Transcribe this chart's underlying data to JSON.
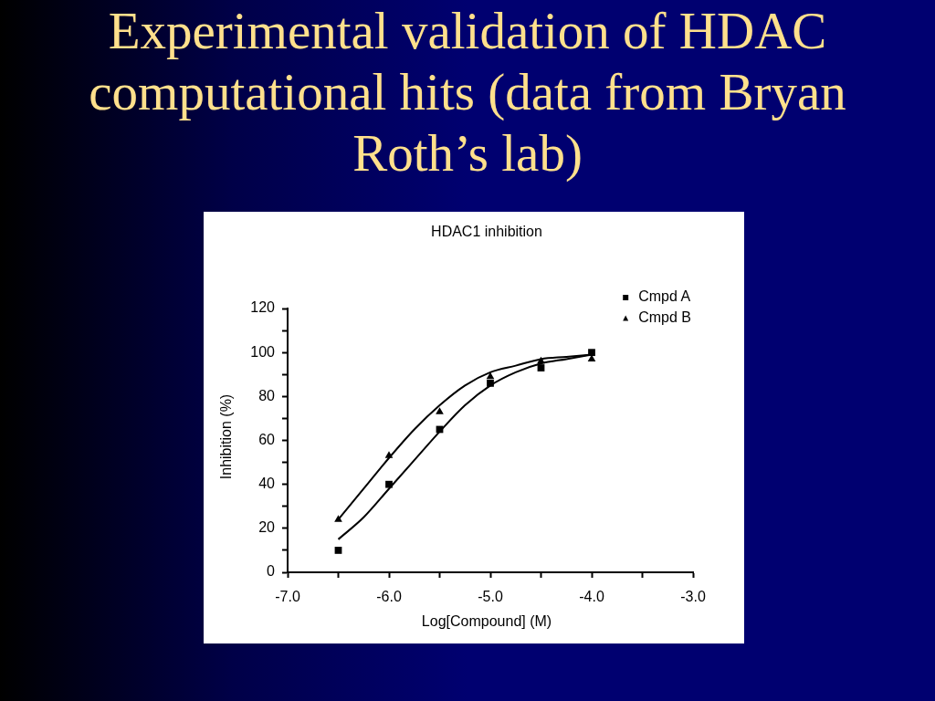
{
  "chart_data": {
    "type": "scatter",
    "title": "Experimental validation of HDAC computational hits (data from Bryan Roth’s lab)",
    "subtitle": "HDAC1 inhibition",
    "xlabel": "Log[Compound] (M)",
    "ylabel": "Inhibition (%)",
    "x": [
      -6.5,
      -6,
      -5.5,
      -5,
      -4.5,
      -4
    ],
    "series": [
      {
        "name": "Cmpd A",
        "type": "scatter",
        "marker": "square",
        "color": "#000000",
        "values": [
          10,
          40,
          65,
          86,
          93,
          100
        ]
      },
      {
        "name": "Cmpd B",
        "type": "scatter",
        "marker": "triangle",
        "color": "#000000",
        "values": [
          24,
          53,
          73,
          89,
          96,
          97
        ]
      },
      {
        "type": "line",
        "marker": "none",
        "color": "#000000",
        "x": [
          -6.5,
          -6.25,
          -6,
          -5.75,
          -5.5,
          -5.25,
          -5,
          -4.75,
          -4.5,
          -4.25,
          -4
        ],
        "values": [
          15,
          25,
          38,
          51,
          64,
          76,
          85,
          91,
          95,
          97,
          99
        ]
      },
      {
        "type": "line",
        "marker": "none",
        "color": "#000000",
        "x": [
          -6.5,
          -6.25,
          -6,
          -5.75,
          -5.5,
          -5.25,
          -5,
          -4.75,
          -4.5,
          -4.25,
          -4
        ],
        "values": [
          24,
          38,
          52,
          65,
          76,
          85,
          91,
          94,
          97,
          98,
          99
        ]
      }
    ],
    "xlim": [
      -7,
      -3
    ],
    "xticks": [
      {
        "value": -7,
        "label": "-7.0"
      },
      {
        "value": -6.5,
        "label": null
      },
      {
        "value": -6,
        "label": "-6.0"
      },
      {
        "value": -5.5,
        "label": null
      },
      {
        "value": -5,
        "label": "-5.0"
      },
      {
        "value": -4.5,
        "label": null
      },
      {
        "value": -4,
        "label": "-4.0"
      },
      {
        "value": -3.5,
        "label": null
      },
      {
        "value": -3,
        "label": "-3.0"
      }
    ],
    "ylim": [
      0,
      120
    ],
    "yticks": [
      0,
      {
        "value": 10,
        "label": null
      },
      20,
      {
        "value": 30,
        "label": null
      },
      40,
      {
        "value": 50,
        "label": null
      },
      60,
      {
        "value": 70,
        "label": null
      },
      80,
      {
        "value": 90,
        "label": null
      },
      100,
      {
        "value": 110,
        "label": null
      },
      120
    ],
    "legend": "top right"
  }
}
